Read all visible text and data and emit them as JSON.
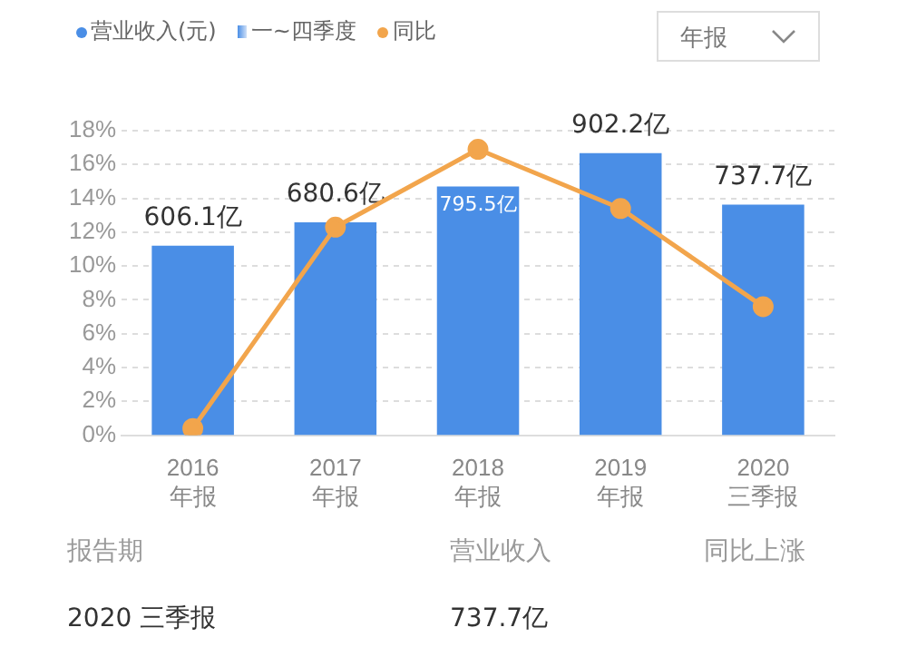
{
  "chart_data": {
    "type": "bar",
    "categories": [
      "2016\n年报",
      "2017\n年报",
      "2018\n年报",
      "2019\n年报",
      "2020\n三季报"
    ],
    "series": [
      {
        "name": "营业收入(元)",
        "axis": "y2",
        "color": "#4a8ee6",
        "values": [
          606.1,
          680.6,
          795.5,
          902.2,
          737.7
        ],
        "value_labels": [
          "606.1亿",
          "680.6亿",
          "795.5亿",
          "902.2亿",
          "737.7亿"
        ]
      },
      {
        "name": "同比",
        "type": "line",
        "color": "#f2a54c",
        "values": [
          0.4,
          12.3,
          16.9,
          13.4,
          7.6
        ]
      }
    ],
    "ylim": [
      0,
      18
    ],
    "yticks": [
      {
        "value": 0,
        "label": "0%"
      },
      {
        "value": 2,
        "label": "2%"
      },
      {
        "value": 4,
        "label": "4%"
      },
      {
        "value": 6,
        "label": "6%"
      },
      {
        "value": 8,
        "label": "8%"
      },
      {
        "value": 10,
        "label": "10%"
      },
      {
        "value": 12,
        "label": "12%"
      },
      {
        "value": 14,
        "label": "14%"
      },
      {
        "value": 16,
        "label": "16%"
      },
      {
        "value": 18,
        "label": "18%"
      }
    ],
    "y2lim": [
      0,
      974
    ],
    "grid": "y",
    "legend": "top left",
    "marker": "circle",
    "line_style": "solid",
    "annotations": [
      "一~四季度",
      "年报",
      "报告期",
      "营业收入",
      "同比上涨",
      "2020 三季报",
      "737.7亿"
    ]
  }
}
